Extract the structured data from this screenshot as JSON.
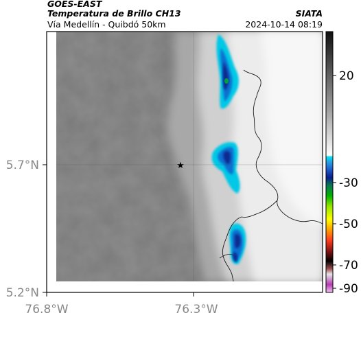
{
  "header": {
    "satellite": "GOES-EAST",
    "product": "Temperatura de Brillo CH13",
    "region": "Vía Medellín - Quibdó 50km",
    "agency": "SIATA",
    "timestamp": "2024-10-14 08:19"
  },
  "axes": {
    "x_ticks": [
      {
        "label": "76.8°W",
        "value": -76.8
      },
      {
        "label": "76.3°W",
        "value": -76.3
      }
    ],
    "y_ticks": [
      {
        "label": "5.7°N",
        "value": 5.7
      },
      {
        "label": "5.2°N",
        "value": 5.2
      }
    ],
    "grid": true
  },
  "colorbar": {
    "labels": [
      {
        "label": "20",
        "value": 20
      },
      {
        "label": "-30",
        "value": -30
      },
      {
        "label": "-50",
        "value": -50
      },
      {
        "label": "-70",
        "value": -70
      },
      {
        "label": "-90",
        "value": -90
      }
    ],
    "colors": {
      "warm": "#7a7a7a",
      "cold": "#ffffff",
      "cyan": "#00c8e6",
      "blue": "#0050c8",
      "green": "#00a030",
      "yellow": "#e6e600",
      "red": "#d21e1e",
      "black": "#000000",
      "magenta": "#b43cb4"
    }
  },
  "marker": {
    "name": "star",
    "symbol": "★"
  }
}
